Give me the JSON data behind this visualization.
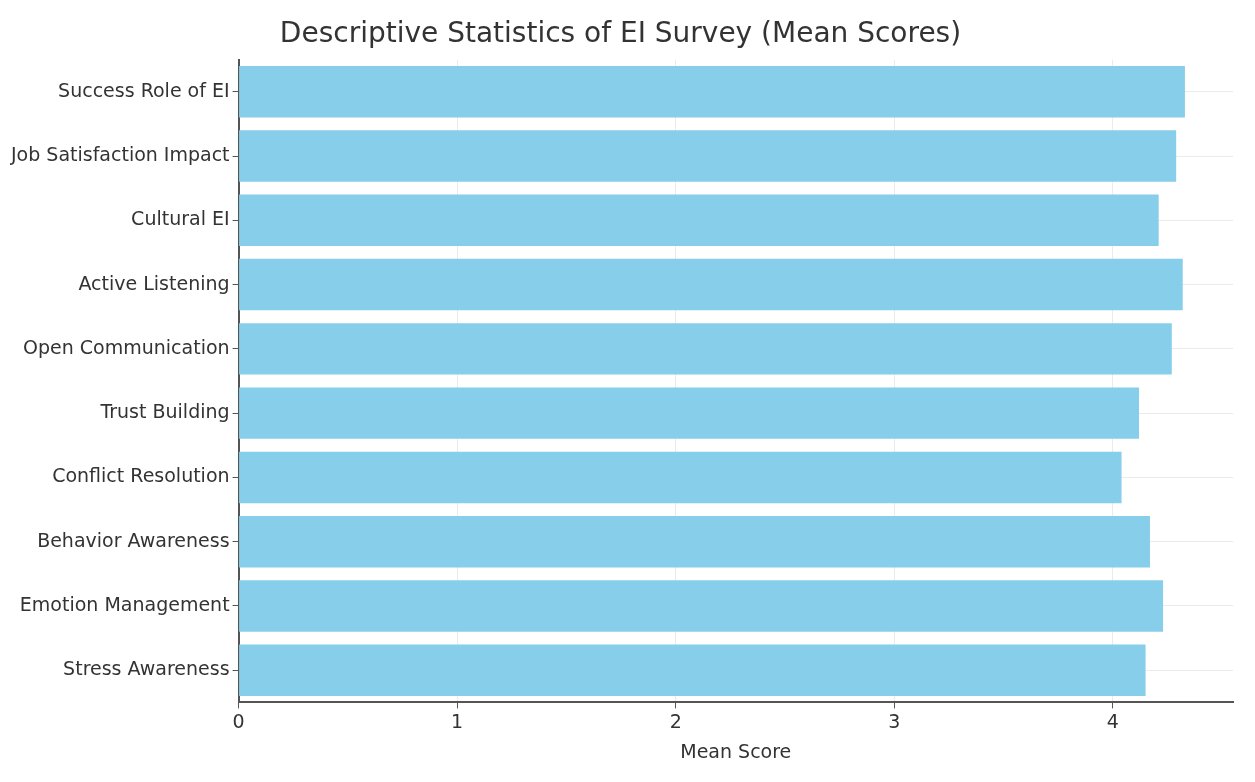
{
  "chart_data": {
    "type": "bar",
    "orientation": "horizontal",
    "title": "Descriptive Statistics of EI Survey (Mean Scores)",
    "xlabel": "Mean Score",
    "categories": [
      "Success Role of EI",
      "Job Satisfaction Impact",
      "Cultural EI",
      "Active Listening",
      "Open Communication",
      "Trust Building",
      "Conflict Resolution",
      "Behavior Awareness",
      "Emotion Management",
      "Stress Awareness"
    ],
    "values": [
      4.33,
      4.29,
      4.21,
      4.32,
      4.27,
      4.12,
      4.04,
      4.17,
      4.23,
      4.15
    ],
    "color": "#87ceeb",
    "xlim": [
      0,
      4.55
    ],
    "xticks": [
      0,
      1,
      2,
      3,
      4
    ],
    "grid": true
  }
}
